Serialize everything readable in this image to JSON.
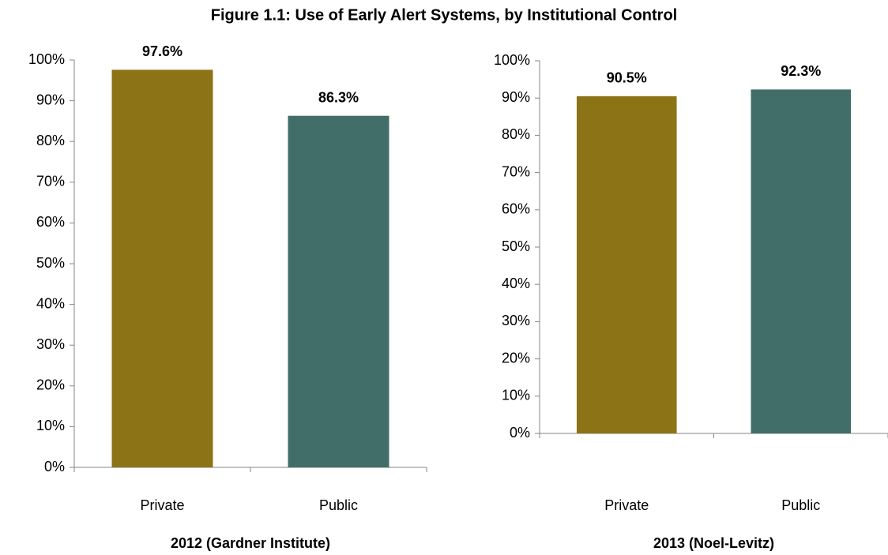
{
  "title": "Figure 1.1: Use of Early Alert Systems, by Institutional Control",
  "chart_data": [
    {
      "type": "bar",
      "xlabel": "2012 (Gardner Institute)",
      "categories": [
        "Private",
        "Public"
      ],
      "values": [
        97.6,
        86.3
      ],
      "value_labels": [
        "97.6%",
        "86.3%"
      ],
      "colors": [
        "#8b7316",
        "#416e69"
      ],
      "ylim": [
        0,
        100
      ],
      "yticks": [
        {
          "value": 0,
          "label": "0%"
        },
        {
          "value": 10,
          "label": "10%"
        },
        {
          "value": 20,
          "label": "20%"
        },
        {
          "value": 30,
          "label": "30%"
        },
        {
          "value": 40,
          "label": "40%"
        },
        {
          "value": 50,
          "label": "50%"
        },
        {
          "value": 60,
          "label": "60%"
        },
        {
          "value": 70,
          "label": "70%"
        },
        {
          "value": 80,
          "label": "80%"
        },
        {
          "value": 90,
          "label": "90%"
        },
        {
          "value": 100,
          "label": "100%"
        }
      ],
      "grid": false
    },
    {
      "type": "bar",
      "xlabel": "2013 (Noel-Levitz)",
      "categories": [
        "Private",
        "Public"
      ],
      "values": [
        90.5,
        92.3
      ],
      "value_labels": [
        "90.5%",
        "92.3%"
      ],
      "colors": [
        "#8b7316",
        "#416e69"
      ],
      "ylim": [
        0,
        100
      ],
      "yticks": [
        {
          "value": 0,
          "label": "0%"
        },
        {
          "value": 10,
          "label": "10%"
        },
        {
          "value": 20,
          "label": "20%"
        },
        {
          "value": 30,
          "label": "30%"
        },
        {
          "value": 40,
          "label": "40%"
        },
        {
          "value": 50,
          "label": "50%"
        },
        {
          "value": 60,
          "label": "60%"
        },
        {
          "value": 70,
          "label": "70%"
        },
        {
          "value": 80,
          "label": "80%"
        },
        {
          "value": 90,
          "label": "90%"
        },
        {
          "value": 100,
          "label": "100%"
        }
      ],
      "grid": false
    }
  ]
}
